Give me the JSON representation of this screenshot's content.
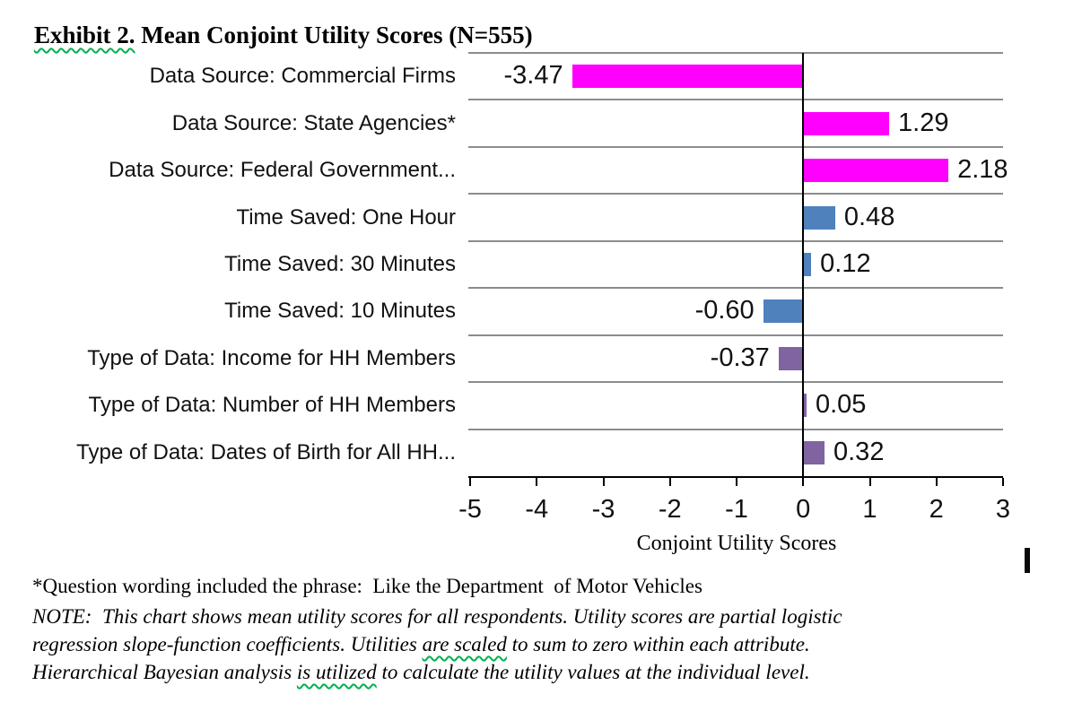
{
  "title": {
    "prefix": "Exhibit 2.",
    "rest": " Mean Conjoint Utility Scores (N=555)"
  },
  "chart_data": {
    "type": "bar",
    "orientation": "horizontal",
    "title": "Exhibit 2. Mean Conjoint Utility Scores (N=555)",
    "categories": [
      "Data Source: Commercial Firms",
      "Data Source: State Agencies*",
      "Data Source: Federal Government...",
      "Time Saved: One Hour",
      "Time Saved: 30 Minutes",
      "Time Saved: 10 Minutes",
      "Type of Data: Income for HH Members",
      "Type of Data: Number of HH Members",
      "Type of Data: Dates of Birth for All HH..."
    ],
    "values": [
      -3.47,
      1.29,
      2.18,
      0.48,
      0.12,
      -0.6,
      -0.37,
      0.05,
      0.32
    ],
    "value_labels": [
      "-3.47",
      "1.29",
      "2.18",
      "0.48",
      "0.12",
      "-0.60",
      "-0.37",
      "0.05",
      "0.32"
    ],
    "bar_colors": [
      "#FF00FF",
      "#FF00FF",
      "#FF00FF",
      "#4F81BD",
      "#4F81BD",
      "#4F81BD",
      "#8064A2",
      "#8064A2",
      "#8064A2"
    ],
    "groups": [
      {
        "name": "Data Source",
        "color": "#FF00FF"
      },
      {
        "name": "Time Saved",
        "color": "#4F81BD"
      },
      {
        "name": "Type of Data",
        "color": "#8064A2"
      }
    ],
    "xlabel": "Conjoint Utility Scores",
    "x_ticks": [
      "-5",
      "-4",
      "-3",
      "-2",
      "-1",
      "0",
      "1",
      "2",
      "3"
    ],
    "x_tick_values": [
      -5,
      -4,
      -3,
      -2,
      -1,
      0,
      1,
      2,
      3
    ],
    "xlim": [
      -5,
      3
    ],
    "grid": "horizontal category separator lines, gray",
    "legend": "none"
  },
  "footnotes": {
    "asterisk_note": "*Question wording included the phrase:  Like the Department  of Motor Vehicles",
    "note_lines": [
      [
        {
          "text": "NOTE:  This chart shows mean utility scores for all respondents. Utility scores are partial logistic",
          "squiggle": false
        }
      ],
      [
        {
          "text": "regression slope-function coefficients. Utilities ",
          "squiggle": false
        },
        {
          "text": "are scaled",
          "squiggle": true
        },
        {
          "text": " to sum to zero within each attribute.",
          "squiggle": false
        }
      ],
      [
        {
          "text": "Hierarchical Bayesian analysis ",
          "squiggle": false
        },
        {
          "text": "is utilized",
          "squiggle": true
        },
        {
          "text": " to calculate the utility values at the individual level.",
          "squiggle": false
        }
      ]
    ]
  },
  "decorations": {
    "text_cursor": "text-cursor-mark"
  },
  "colors": {
    "magenta": "#FF00FF",
    "blue": "#4F81BD",
    "purple": "#8064A2",
    "gridline": "#8C8C8C",
    "axis": "#000000",
    "squiggle": "#00B050",
    "background": "#FFFFFF"
  }
}
